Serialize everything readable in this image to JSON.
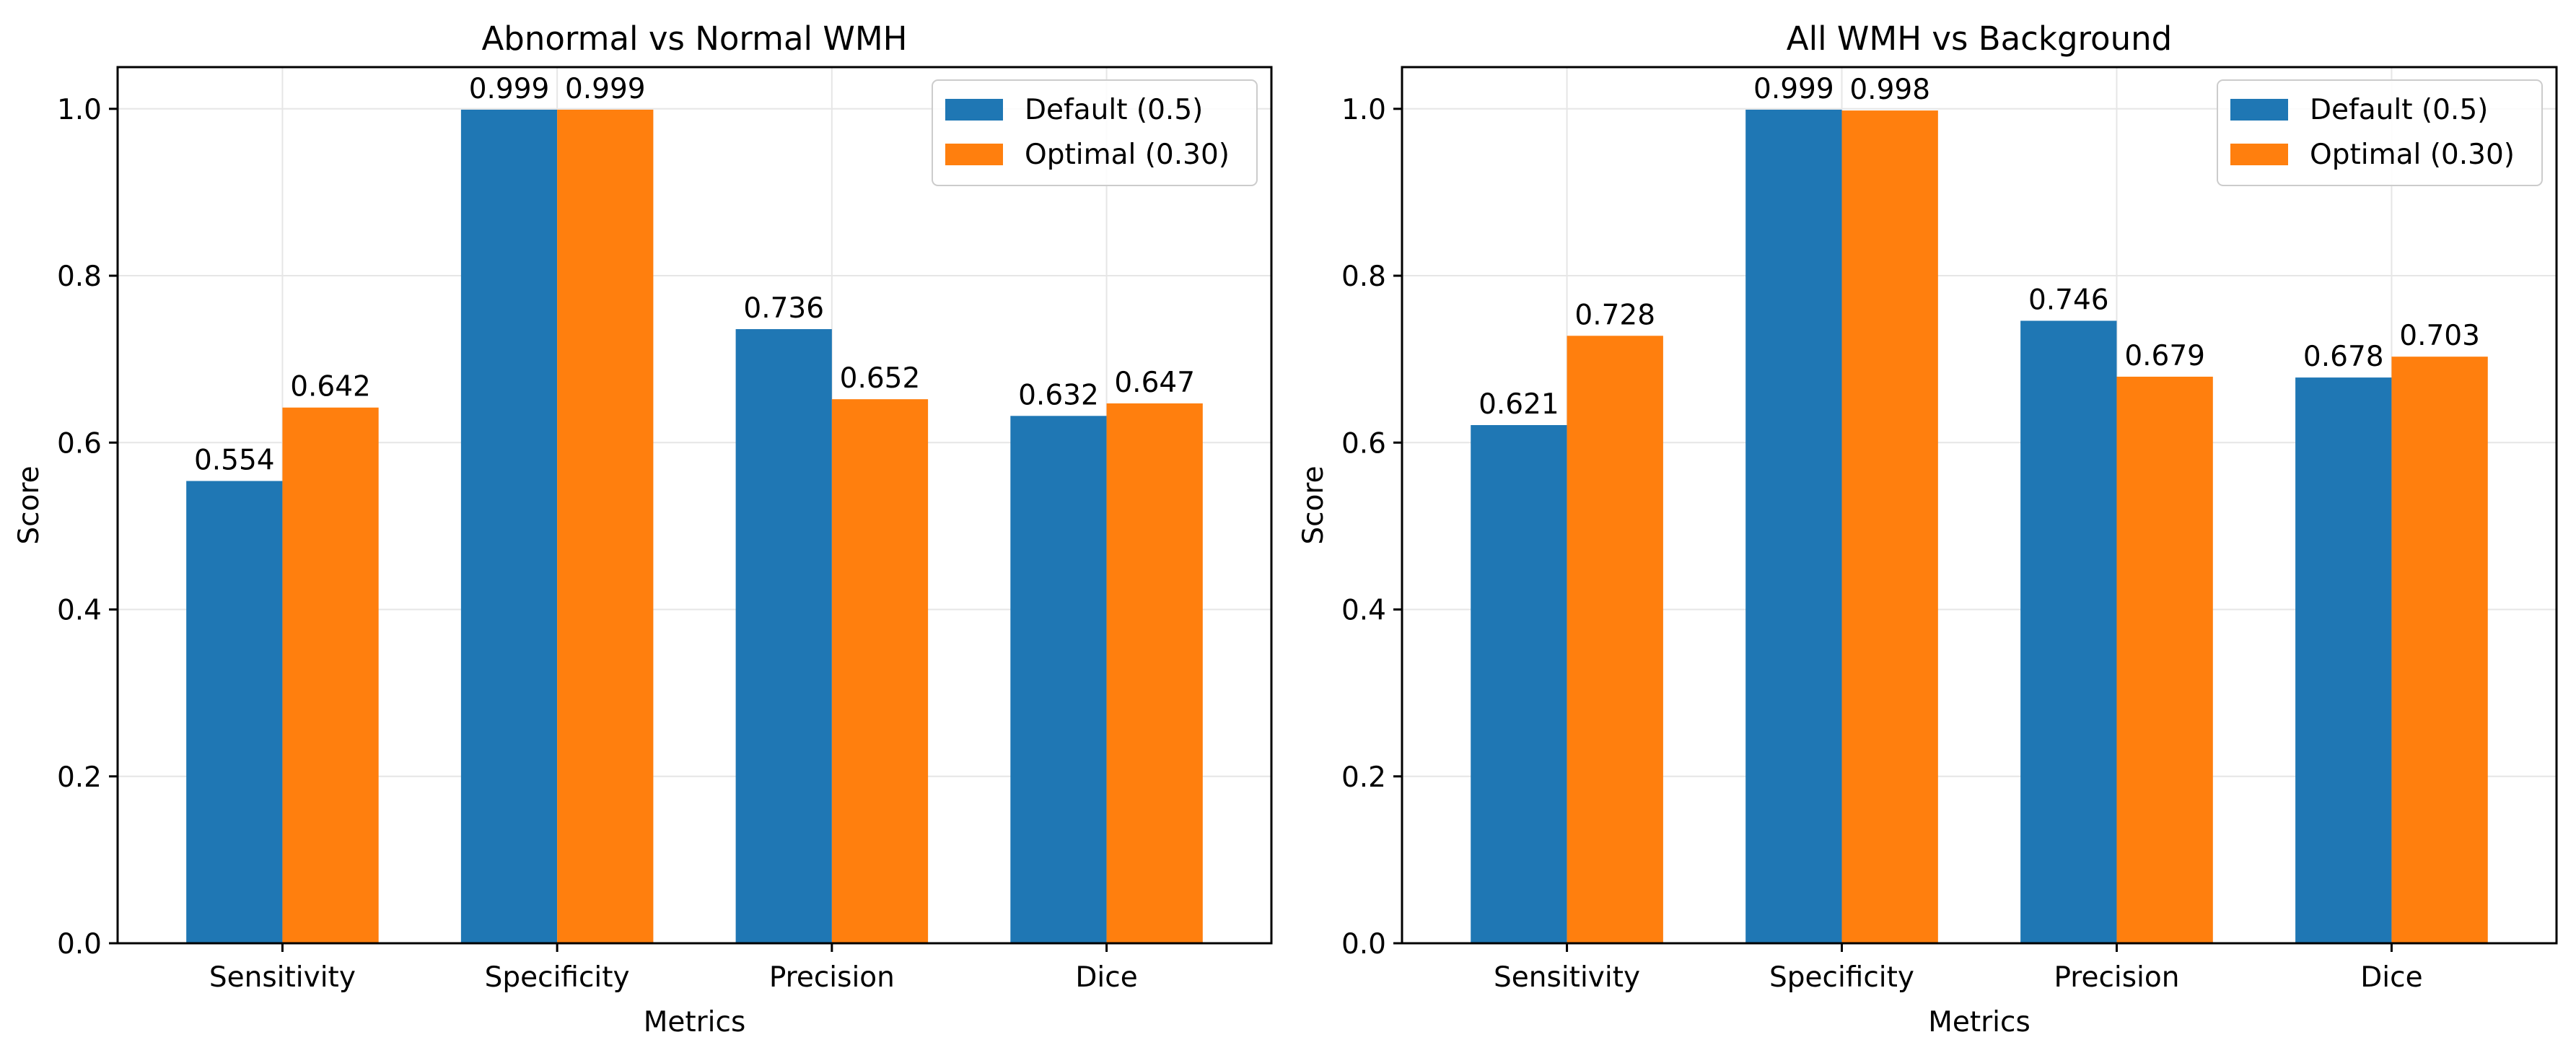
{
  "colors": {
    "default": "#1f77b4",
    "optimal": "#ff7f0e",
    "grid": "#e6e6e6",
    "axis": "#000000"
  },
  "chart_data": [
    {
      "type": "bar",
      "title": "Abnormal vs Normal WMH",
      "xlabel": "Metrics",
      "ylabel": "Score",
      "ylim": [
        0,
        1.05
      ],
      "yticks": [
        "0.0",
        "0.2",
        "0.4",
        "0.6",
        "0.8",
        "1.0"
      ],
      "grid": true,
      "legend_position": "top-right",
      "categories": [
        "Sensitivity",
        "Specificity",
        "Precision",
        "Dice"
      ],
      "series": [
        {
          "name": "Default (0.5)",
          "values": [
            0.554,
            0.999,
            0.736,
            0.632
          ],
          "labels": [
            "0.554",
            "0.999",
            "0.736",
            "0.632"
          ]
        },
        {
          "name": "Optimal (0.30)",
          "values": [
            0.642,
            0.999,
            0.652,
            0.647
          ],
          "labels": [
            "0.642",
            "0.999",
            "0.652",
            "0.647"
          ]
        }
      ]
    },
    {
      "type": "bar",
      "title": "All WMH vs Background",
      "xlabel": "Metrics",
      "ylabel": "Score",
      "ylim": [
        0,
        1.05
      ],
      "yticks": [
        "0.0",
        "0.2",
        "0.4",
        "0.6",
        "0.8",
        "1.0"
      ],
      "grid": true,
      "legend_position": "top-right",
      "categories": [
        "Sensitivity",
        "Specificity",
        "Precision",
        "Dice"
      ],
      "series": [
        {
          "name": "Default (0.5)",
          "values": [
            0.621,
            0.999,
            0.746,
            0.678
          ],
          "labels": [
            "0.621",
            "0.999",
            "0.746",
            "0.678"
          ]
        },
        {
          "name": "Optimal (0.30)",
          "values": [
            0.728,
            0.998,
            0.679,
            0.703
          ],
          "labels": [
            "0.728",
            "0.998",
            "0.679",
            "0.703"
          ]
        }
      ]
    }
  ]
}
